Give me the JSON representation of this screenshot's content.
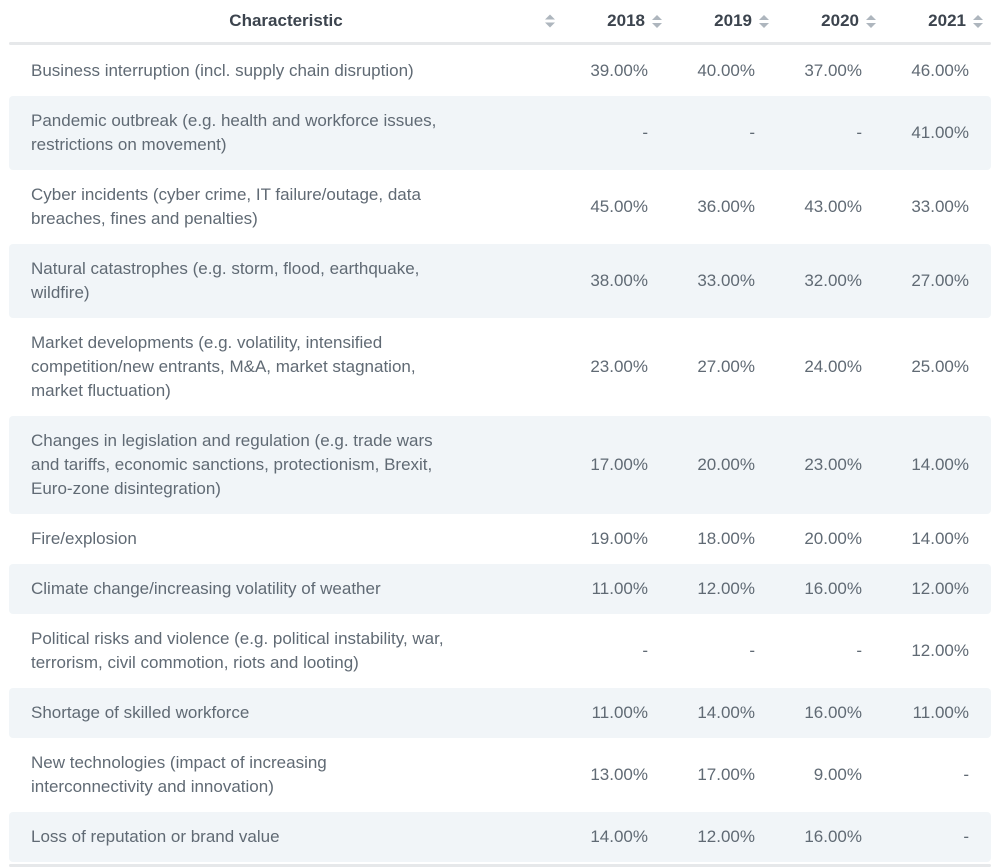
{
  "colors": {
    "stripe": "#f1f5f8",
    "body_text": "#606a74",
    "header_text": "#3c444e",
    "sort_icon": "#aeb6be",
    "divider": "#e6e8ea"
  },
  "icons": {
    "sort": "sort-asc-desc-arrows"
  },
  "chart_data": {
    "type": "table",
    "title": "",
    "legend": false,
    "columns": [
      "Characteristic",
      "2018",
      "2019",
      "2020",
      "2021"
    ],
    "columns_sortable": [
      true,
      true,
      true,
      true,
      true
    ],
    "missing_value_symbol": "-",
    "rows": [
      {
        "label": "Business interruption (incl. supply chain disruption)",
        "values": [
          "39.00%",
          "40.00%",
          "37.00%",
          "46.00%"
        ]
      },
      {
        "label": "Pandemic outbreak (e.g. health and workforce issues,\nrestrictions on movement)",
        "values": [
          "-",
          "-",
          "-",
          "41.00%"
        ]
      },
      {
        "label": "Cyber incidents (cyber crime, IT failure/outage, data\nbreaches, fines and penalties)",
        "values": [
          "45.00%",
          "36.00%",
          "43.00%",
          "33.00%"
        ]
      },
      {
        "label": "Natural catastrophes (e.g. storm, flood, earthquake,\nwildfire)",
        "values": [
          "38.00%",
          "33.00%",
          "32.00%",
          "27.00%"
        ]
      },
      {
        "label": "Market developments (e.g. volatility, intensified\ncompetition/new entrants, M&A, market stagnation,\nmarket fluctuation)",
        "values": [
          "23.00%",
          "27.00%",
          "24.00%",
          "25.00%"
        ]
      },
      {
        "label": "Changes in legislation and regulation (e.g. trade wars\nand tariffs, economic sanctions, protectionism, Brexit,\nEuro-zone disintegration)",
        "values": [
          "17.00%",
          "20.00%",
          "23.00%",
          "14.00%"
        ]
      },
      {
        "label": "Fire/explosion",
        "values": [
          "19.00%",
          "18.00%",
          "20.00%",
          "14.00%"
        ]
      },
      {
        "label": "Climate change/increasing volatility of weather",
        "values": [
          "11.00%",
          "12.00%",
          "16.00%",
          "12.00%"
        ]
      },
      {
        "label": "Political risks and violence (e.g. political instability, war,\nterrorism, civil commotion, riots and looting)",
        "values": [
          "-",
          "-",
          "-",
          "12.00%"
        ]
      },
      {
        "label": "Shortage of skilled workforce",
        "values": [
          "11.00%",
          "14.00%",
          "16.00%",
          "11.00%"
        ]
      },
      {
        "label": "New technologies (impact of increasing\ninterconnectivity and innovation)",
        "values": [
          "13.00%",
          "17.00%",
          "9.00%",
          "-"
        ]
      },
      {
        "label": "Loss of reputation or brand value",
        "values": [
          "14.00%",
          "12.00%",
          "16.00%",
          "-"
        ]
      }
    ]
  }
}
